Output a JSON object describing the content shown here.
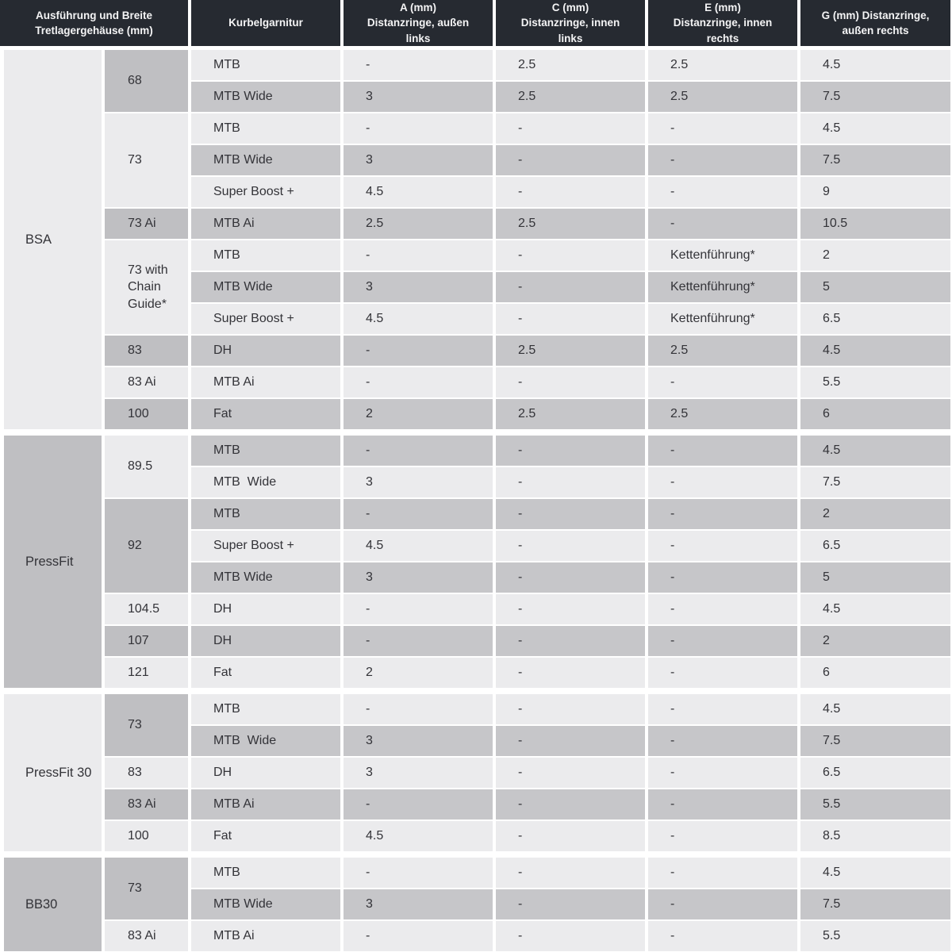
{
  "colors": {
    "header_bg": "#262a31",
    "header_text": "#f4f4f5",
    "row_light": "#ebebed",
    "row_gray": "#c6c6c9",
    "span_cell_gray": "#bfbfc2",
    "body_text": "#333338",
    "gap_white": "#ffffff"
  },
  "table": {
    "headers": [
      {
        "label": "Ausführung und Breite\nTretlagergehäuse (mm)"
      },
      {
        "label": "Kurbelgarnitur"
      },
      {
        "label": "A (mm)\nDistanzringe, außen\nlinks"
      },
      {
        "label": "C (mm)\nDistanzringe, innen\nlinks"
      },
      {
        "label": "E (mm)\nDistanzringe, innen\nrechts"
      },
      {
        "label": "G (mm) Distanzringe,\naußen rechts"
      }
    ],
    "sections": [
      {
        "name": "BSA",
        "shade": "light",
        "width_groups": [
          {
            "width": "68",
            "shade": "gray",
            "rows": [
              {
                "crankset": "MTB",
                "a": "-",
                "c": "2.5",
                "e": "2.5",
                "g": "4.5",
                "shade": "light"
              },
              {
                "crankset": "MTB Wide",
                "a": "3",
                "c": "2.5",
                "e": "2.5",
                "g": "7.5",
                "shade": "gray"
              }
            ]
          },
          {
            "width": "73",
            "shade": "light",
            "rows": [
              {
                "crankset": "MTB",
                "a": "-",
                "c": "-",
                "e": "-",
                "g": "4.5",
                "shade": "light"
              },
              {
                "crankset": "MTB Wide",
                "a": "3",
                "c": "-",
                "e": "-",
                "g": "7.5",
                "shade": "gray"
              },
              {
                "crankset": "Super Boost +",
                "a": "4.5",
                "c": "-",
                "e": "-",
                "g": "9",
                "shade": "light"
              }
            ]
          },
          {
            "width": "73 Ai",
            "shade": "gray",
            "rows": [
              {
                "crankset": "MTB Ai",
                "a": "2.5",
                "c": "2.5",
                "e": "-",
                "g": "10.5",
                "shade": "gray"
              }
            ]
          },
          {
            "width": "73 with Chain Guide*",
            "shade": "light",
            "rows": [
              {
                "crankset": "MTB",
                "a": "-",
                "c": "-",
                "e": "Kettenführung*",
                "g": "2",
                "shade": "light"
              },
              {
                "crankset": "MTB Wide",
                "a": "3",
                "c": "-",
                "e": "Kettenführung*",
                "g": "5",
                "shade": "gray"
              },
              {
                "crankset": "Super Boost +",
                "a": "4.5",
                "c": "-",
                "e": "Kettenführung*",
                "g": "6.5",
                "shade": "light"
              }
            ]
          },
          {
            "width": "83",
            "shade": "gray",
            "rows": [
              {
                "crankset": "DH",
                "a": "-",
                "c": "2.5",
                "e": "2.5",
                "g": "4.5",
                "shade": "gray"
              }
            ]
          },
          {
            "width": "83 Ai",
            "shade": "light",
            "rows": [
              {
                "crankset": "MTB Ai",
                "a": "-",
                "c": "-",
                "e": "-",
                "g": "5.5",
                "shade": "light"
              }
            ]
          },
          {
            "width": "100",
            "shade": "gray",
            "rows": [
              {
                "crankset": "Fat",
                "a": "2",
                "c": "2.5",
                "e": "2.5",
                "g": "6",
                "shade": "gray"
              }
            ]
          }
        ]
      },
      {
        "name": "PressFit",
        "shade": "gray",
        "width_groups": [
          {
            "width": "89.5",
            "shade": "light",
            "rows": [
              {
                "crankset": "MTB",
                "a": "-",
                "c": "-",
                "e": "-",
                "g": "4.5",
                "shade": "gray"
              },
              {
                "crankset": "MTB  Wide",
                "a": "3",
                "c": "-",
                "e": "-",
                "g": "7.5",
                "shade": "light"
              }
            ]
          },
          {
            "width": "92",
            "shade": "gray",
            "rows": [
              {
                "crankset": "MTB",
                "a": "-",
                "c": "-",
                "e": "-",
                "g": "2",
                "shade": "gray"
              },
              {
                "crankset": "Super Boost +",
                "a": "4.5",
                "c": "-",
                "e": "-",
                "g": "6.5",
                "shade": "light"
              },
              {
                "crankset": "MTB Wide",
                "a": "3",
                "c": "-",
                "e": "-",
                "g": "5",
                "shade": "gray"
              }
            ]
          },
          {
            "width": "104.5",
            "shade": "light",
            "rows": [
              {
                "crankset": "DH",
                "a": "-",
                "c": "-",
                "e": "-",
                "g": "4.5",
                "shade": "light"
              }
            ]
          },
          {
            "width": "107",
            "shade": "gray",
            "rows": [
              {
                "crankset": "DH",
                "a": "-",
                "c": "-",
                "e": "-",
                "g": "2",
                "shade": "gray"
              }
            ]
          },
          {
            "width": "121",
            "shade": "light",
            "rows": [
              {
                "crankset": "Fat",
                "a": "2",
                "c": "-",
                "e": "-",
                "g": "6",
                "shade": "light"
              }
            ]
          }
        ]
      },
      {
        "name": "PressFit 30",
        "shade": "light",
        "width_groups": [
          {
            "width": "73",
            "shade": "gray",
            "rows": [
              {
                "crankset": "MTB",
                "a": "-",
                "c": "-",
                "e": "-",
                "g": "4.5",
                "shade": "light"
              },
              {
                "crankset": "MTB  Wide",
                "a": "3",
                "c": "-",
                "e": "-",
                "g": "7.5",
                "shade": "gray"
              }
            ]
          },
          {
            "width": "83",
            "shade": "light",
            "rows": [
              {
                "crankset": "DH",
                "a": "3",
                "c": "-",
                "e": "-",
                "g": "6.5",
                "shade": "light"
              }
            ]
          },
          {
            "width": "83 Ai",
            "shade": "gray",
            "rows": [
              {
                "crankset": "MTB Ai",
                "a": "-",
                "c": "-",
                "e": "-",
                "g": "5.5",
                "shade": "gray"
              }
            ]
          },
          {
            "width": "100",
            "shade": "light",
            "rows": [
              {
                "crankset": "Fat",
                "a": "4.5",
                "c": "-",
                "e": "-",
                "g": "8.5",
                "shade": "light"
              }
            ]
          }
        ]
      },
      {
        "name": "BB30",
        "shade": "gray",
        "width_groups": [
          {
            "width": "73",
            "shade": "gray",
            "rows": [
              {
                "crankset": "MTB",
                "a": "-",
                "c": "-",
                "e": "-",
                "g": "4.5",
                "shade": "light"
              },
              {
                "crankset": "MTB Wide",
                "a": "3",
                "c": "-",
                "e": "-",
                "g": "7.5",
                "shade": "gray"
              }
            ]
          },
          {
            "width": "83 Ai",
            "shade": "light",
            "rows": [
              {
                "crankset": "MTB Ai",
                "a": "-",
                "c": "-",
                "e": "-",
                "g": "5.5",
                "shade": "light"
              }
            ]
          }
        ]
      }
    ]
  }
}
